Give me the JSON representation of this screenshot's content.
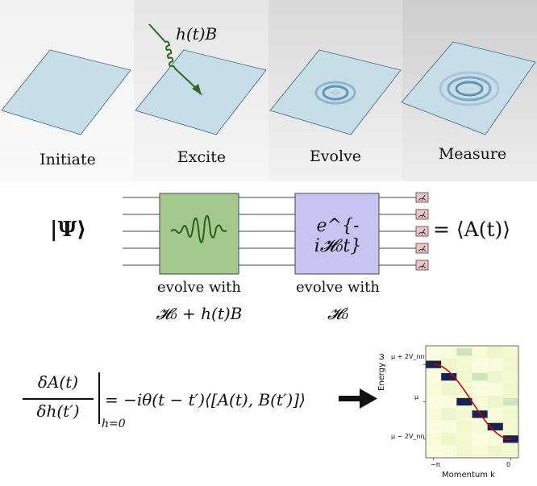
{
  "stages": [
    {
      "label": "Initiate"
    },
    {
      "label": "Excite"
    },
    {
      "label": "Evolve"
    },
    {
      "label": "Measure"
    }
  ],
  "excitation_label": "h(t)B",
  "state_label": "|Ψ⟩",
  "gate1": {
    "caption_line1": "evolve with",
    "caption_line2": "𝓗₀ + h(t)B"
  },
  "gate2": {
    "formula": "e^{-i𝓗₀t}",
    "caption_line1": "evolve with",
    "caption_line2": "𝓗₀"
  },
  "result_label": "= ⟨A(t)⟩",
  "response_formula": {
    "numerator": "δA(t)",
    "denominator": "δh(t′)",
    "subscript": "h=0",
    "rhs": "= −iθ(t − t′)⟨[A(t), B(t′)]⟩"
  },
  "chart_data": {
    "type": "heatmap",
    "xlabel": "Momentum k",
    "ylabel": "Energy ω",
    "x_ticks": [
      "−π",
      "0"
    ],
    "y_ticks": [
      "μ + 2V_nn",
      "μ",
      "μ − 2V_nn"
    ],
    "n_cols": 6,
    "n_rows": 9,
    "highlight_cells": [
      {
        "col": 0,
        "row": 1
      },
      {
        "col": 1,
        "row": 2
      },
      {
        "col": 2,
        "row": 4
      },
      {
        "col": 3,
        "row": 5
      },
      {
        "col": 4,
        "row": 6
      },
      {
        "col": 5,
        "row": 7
      }
    ],
    "secondary_cells": [
      {
        "col": 2,
        "row": 0
      },
      {
        "col": 5,
        "row": 4
      },
      {
        "col": 3,
        "row": 2
      }
    ],
    "dispersion_color": "#cc0000",
    "highlight_color": "#1a2350"
  }
}
